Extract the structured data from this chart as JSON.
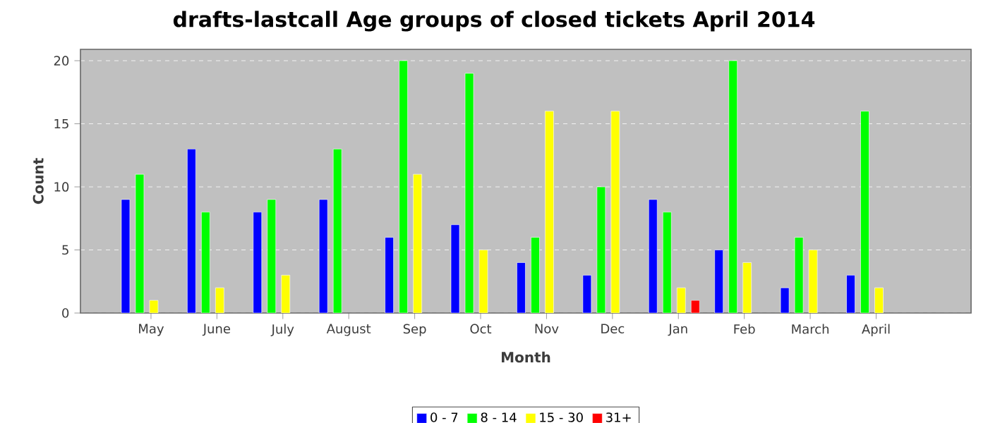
{
  "chart_data": {
    "type": "bar",
    "title": "drafts-lastcall Age groups of closed tickets April 2014",
    "xlabel": "Month",
    "ylabel": "Count",
    "categories": [
      "May",
      "June",
      "July",
      "August",
      "Sep",
      "Oct",
      "Nov",
      "Dec",
      "Jan",
      "Feb",
      "March",
      "April"
    ],
    "series": [
      {
        "name": "0 - 7",
        "color": "#0000ff",
        "values": [
          9,
          13,
          8,
          9,
          6,
          7,
          4,
          3,
          9,
          5,
          2,
          3
        ]
      },
      {
        "name": "8 - 14",
        "color": "#00ff00",
        "values": [
          11,
          8,
          9,
          13,
          20,
          19,
          6,
          10,
          8,
          20,
          6,
          16
        ]
      },
      {
        "name": "15 - 30",
        "color": "#ffff00",
        "values": [
          1,
          2,
          3,
          null,
          11,
          5,
          16,
          16,
          2,
          4,
          5,
          2
        ]
      },
      {
        "name": "31+",
        "color": "#ff0000",
        "values": [
          null,
          null,
          null,
          null,
          null,
          null,
          null,
          null,
          1,
          null,
          null,
          null
        ]
      }
    ],
    "ylim": [
      0,
      20.9
    ],
    "yticks": [
      0,
      5,
      10,
      15,
      20
    ],
    "grid": "y",
    "legend": "bottom"
  }
}
